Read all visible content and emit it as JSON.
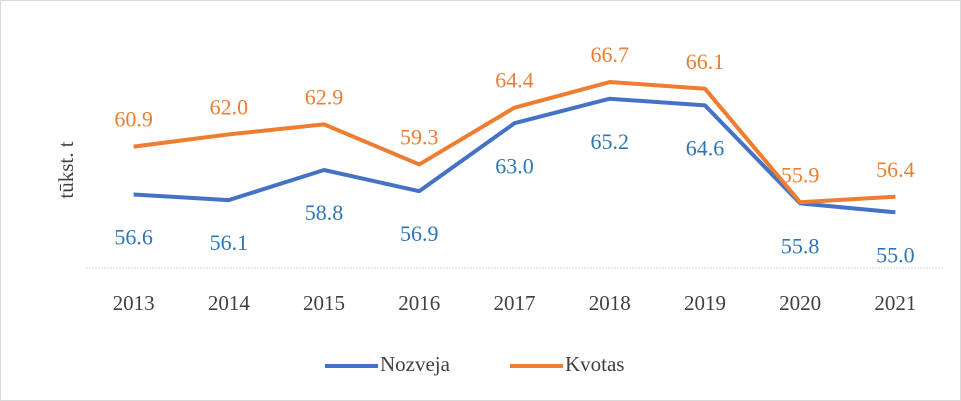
{
  "chart_data": {
    "type": "line",
    "ylabel": "tūkst. t",
    "categories": [
      "2013",
      "2014",
      "2015",
      "2016",
      "2017",
      "2018",
      "2019",
      "2020",
      "2021"
    ],
    "series": [
      {
        "name": "Nozveja",
        "color": "#4472c4",
        "label_color": "#2e75b6",
        "values": [
          56.6,
          56.1,
          58.8,
          56.9,
          63.0,
          65.2,
          64.6,
          55.8,
          55.0
        ],
        "value_labels": [
          "56.6",
          "56.1",
          "58.8",
          "56.9",
          "63.0",
          "65.2",
          "64.6",
          "55.8",
          "55.0"
        ]
      },
      {
        "name": "Kvotas",
        "color": "#ed7d31",
        "label_color": "#ed7d31",
        "values": [
          60.9,
          62.0,
          62.9,
          59.3,
          64.4,
          66.7,
          66.1,
          55.9,
          56.4
        ],
        "value_labels": [
          "60.9",
          "62.0",
          "62.9",
          "59.3",
          "64.4",
          "66.7",
          "66.1",
          "55.9",
          "56.4"
        ]
      }
    ],
    "ylim": [
      50,
      72
    ],
    "legend": "bottom"
  }
}
